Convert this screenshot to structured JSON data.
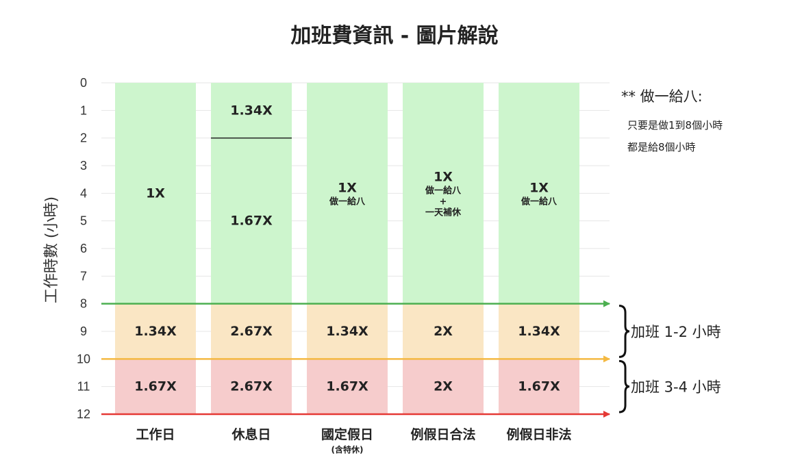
{
  "chart_data": {
    "type": "table",
    "title": "加班費資訊 - 圖片解說",
    "ylabel": "工作時數 (小時)",
    "ylim": [
      0,
      12
    ],
    "y_ticks": [
      "0",
      "1",
      "2",
      "3",
      "4",
      "5",
      "6",
      "7",
      "8",
      "9",
      "10",
      "11",
      "12"
    ],
    "grid": true,
    "categories": [
      {
        "label": "工作日",
        "sub": ""
      },
      {
        "label": "休息日",
        "sub": ""
      },
      {
        "label": "國定假日",
        "sub": "(含特休)"
      },
      {
        "label": "例假日合法",
        "sub": ""
      },
      {
        "label": "例假日非法",
        "sub": ""
      }
    ],
    "cells": [
      {
        "col": 0,
        "from": 0,
        "to": 8,
        "band": "regular",
        "text": "1X",
        "notes": []
      },
      {
        "col": 1,
        "from": 0,
        "to": 2,
        "band": "regular",
        "text": "1.34X",
        "notes": []
      },
      {
        "col": 1,
        "from": 2,
        "to": 8,
        "band": "regular",
        "text": "1.67X",
        "notes": []
      },
      {
        "col": 2,
        "from": 0,
        "to": 8,
        "band": "regular",
        "text": "1X",
        "notes": [
          "做一給八"
        ]
      },
      {
        "col": 3,
        "from": 0,
        "to": 8,
        "band": "regular",
        "text": "1X",
        "notes": [
          "做一給八",
          "+",
          "一天補休"
        ]
      },
      {
        "col": 4,
        "from": 0,
        "to": 8,
        "band": "regular",
        "text": "1X",
        "notes": [
          "做一給八"
        ]
      },
      {
        "col": 0,
        "from": 8,
        "to": 10,
        "band": "ot1",
        "text": "1.34X",
        "notes": []
      },
      {
        "col": 1,
        "from": 8,
        "to": 10,
        "band": "ot1",
        "text": "2.67X",
        "notes": []
      },
      {
        "col": 2,
        "from": 8,
        "to": 10,
        "band": "ot1",
        "text": "1.34X",
        "notes": []
      },
      {
        "col": 3,
        "from": 8,
        "to": 10,
        "band": "ot1",
        "text": "2X",
        "notes": []
      },
      {
        "col": 4,
        "from": 8,
        "to": 10,
        "band": "ot1",
        "text": "1.34X",
        "notes": []
      },
      {
        "col": 0,
        "from": 10,
        "to": 12,
        "band": "ot2",
        "text": "1.67X",
        "notes": []
      },
      {
        "col": 1,
        "from": 10,
        "to": 12,
        "band": "ot2",
        "text": "2.67X",
        "notes": []
      },
      {
        "col": 2,
        "from": 10,
        "to": 12,
        "band": "ot2",
        "text": "1.67X",
        "notes": []
      },
      {
        "col": 3,
        "from": 10,
        "to": 12,
        "band": "ot2",
        "text": "2X",
        "notes": []
      },
      {
        "col": 4,
        "from": 10,
        "to": 12,
        "band": "ot2",
        "text": "1.67X",
        "notes": []
      }
    ],
    "band_labels": [
      {
        "from": 8,
        "to": 10,
        "text": "加班 1-2 小時"
      },
      {
        "from": 10,
        "to": 12,
        "text": "加班 3-4 小時"
      }
    ],
    "arrows": [
      {
        "at": 8,
        "color": "#4caf50"
      },
      {
        "at": 10,
        "color": "#f4b942"
      },
      {
        "at": 12,
        "color": "#e53935"
      }
    ],
    "divider": {
      "col": 1,
      "at": 2,
      "color": "#222222"
    },
    "footnote": {
      "title": "** 做一給八:",
      "lines": [
        "只要是做1到8個小時",
        "都是給8個小時"
      ]
    },
    "colors": {
      "regular": "#cdf5cd",
      "ot1": "#fae6c4",
      "ot2": "#f6cccc",
      "grid": "#e6e6e6"
    }
  }
}
